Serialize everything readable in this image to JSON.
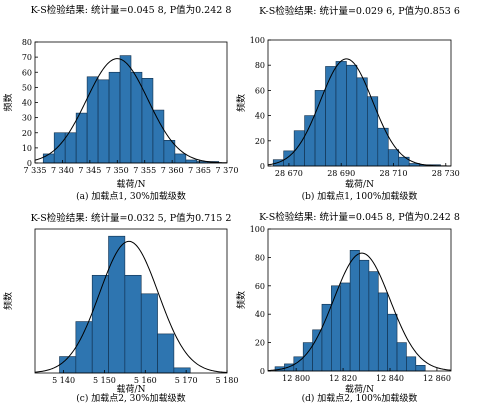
{
  "chart_data": [
    {
      "type": "bar",
      "title": "K-S检验结果: 统计量=0.045 8, P值为0.242 8",
      "caption": "(a) 加载点1, 30%加载级数",
      "xlabel": "载荷/N",
      "ylabel": "频数",
      "xlim": [
        7335,
        7370
      ],
      "ylim": [
        0,
        80
      ],
      "xticks": [
        7335,
        7340,
        7345,
        7350,
        7355,
        7360,
        7365,
        7370
      ],
      "xtick_labels": [
        "7 335",
        "7 340",
        "7 345",
        "7 350",
        "7 355",
        "7 360",
        "7 365",
        "7 370"
      ],
      "yticks": [
        0,
        10,
        20,
        30,
        40,
        50,
        60,
        70,
        80
      ],
      "bins": [
        {
          "x0": 7336.5,
          "x1": 7338.5,
          "value": 6
        },
        {
          "x0": 7338.5,
          "x1": 7340.5,
          "value": 20
        },
        {
          "x0": 7340.5,
          "x1": 7342.5,
          "value": 20
        },
        {
          "x0": 7342.5,
          "x1": 7344.5,
          "value": 33
        },
        {
          "x0": 7344.5,
          "x1": 7346.5,
          "value": 57
        },
        {
          "x0": 7346.5,
          "x1": 7348.5,
          "value": 55
        },
        {
          "x0": 7348.5,
          "x1": 7350.5,
          "value": 60
        },
        {
          "x0": 7350.5,
          "x1": 7352.5,
          "value": 71
        },
        {
          "x0": 7352.5,
          "x1": 7354.5,
          "value": 60
        },
        {
          "x0": 7354.5,
          "x1": 7356.5,
          "value": 56
        },
        {
          "x0": 7356.5,
          "x1": 7358.5,
          "value": 35
        },
        {
          "x0": 7358.5,
          "x1": 7360.5,
          "value": 15
        },
        {
          "x0": 7360.5,
          "x1": 7362.5,
          "value": 6
        },
        {
          "x0": 7362.5,
          "x1": 7364.5,
          "value": 2
        },
        {
          "x0": 7364.5,
          "x1": 7366.5,
          "value": 1
        },
        {
          "x0": 7366.5,
          "x1": 7368.5,
          "value": 1
        }
      ],
      "fit_curve": {
        "type": "normal",
        "mean": 7350,
        "sd": 5.6,
        "peak": 69
      }
    },
    {
      "type": "bar",
      "title": "K-S检验结果: 统计量=0.029 6, P值为0.853 6",
      "caption": "(b) 加载点1, 100%加载级数",
      "xlabel": "载荷/N",
      "ylabel": "频数",
      "xlim": [
        28662,
        28732
      ],
      "ylim": [
        0,
        100
      ],
      "xticks": [
        28670,
        28690,
        28710,
        28730
      ],
      "xtick_labels": [
        "28 670",
        "28 690",
        "28 710",
        "28 730"
      ],
      "yticks": [
        0,
        20,
        40,
        60,
        80,
        100
      ],
      "bins": [
        {
          "x0": 28664,
          "x1": 28668,
          "value": 5
        },
        {
          "x0": 28668,
          "x1": 28672,
          "value": 12
        },
        {
          "x0": 28672,
          "x1": 28676,
          "value": 28
        },
        {
          "x0": 28676,
          "x1": 28680,
          "value": 40
        },
        {
          "x0": 28680,
          "x1": 28684,
          "value": 60
        },
        {
          "x0": 28684,
          "x1": 28688,
          "value": 79
        },
        {
          "x0": 28688,
          "x1": 28692,
          "value": 83
        },
        {
          "x0": 28692,
          "x1": 28696,
          "value": 80
        },
        {
          "x0": 28696,
          "x1": 28700,
          "value": 70
        },
        {
          "x0": 28700,
          "x1": 28704,
          "value": 55
        },
        {
          "x0": 28704,
          "x1": 28708,
          "value": 30
        },
        {
          "x0": 28708,
          "x1": 28712,
          "value": 13
        },
        {
          "x0": 28712,
          "x1": 28716,
          "value": 7
        },
        {
          "x0": 28716,
          "x1": 28720,
          "value": 2
        },
        {
          "x0": 28720,
          "x1": 28724,
          "value": 1
        },
        {
          "x0": 28724,
          "x1": 28728,
          "value": 1
        }
      ],
      "fit_curve": {
        "type": "normal",
        "mean": 28692,
        "sd": 10,
        "peak": 85
      }
    },
    {
      "type": "bar",
      "title": "K-S检验结果: 统计量=0.032 5, P值为0.715 2",
      "caption": "(c) 加载点2, 30%加载级数",
      "xlabel": "载荷/N",
      "ylabel": "频数",
      "xlim": [
        5133,
        5180
      ],
      "ylim": [
        0,
        140
      ],
      "xticks": [
        5140,
        5150,
        5160,
        5170,
        5180
      ],
      "xtick_labels": [
        "5 140",
        "5 150",
        "5 160",
        "5 170",
        "5 180"
      ],
      "yticks": [],
      "bins": [
        {
          "x0": 5139,
          "x1": 5143,
          "value": 16
        },
        {
          "x0": 5143,
          "x1": 5147,
          "value": 50
        },
        {
          "x0": 5147,
          "x1": 5151,
          "value": 95
        },
        {
          "x0": 5151,
          "x1": 5155,
          "value": 133
        },
        {
          "x0": 5155,
          "x1": 5159,
          "value": 95
        },
        {
          "x0": 5159,
          "x1": 5163,
          "value": 77
        },
        {
          "x0": 5163,
          "x1": 5167,
          "value": 38
        },
        {
          "x0": 5167,
          "x1": 5171,
          "value": 5
        }
      ],
      "fit_curve": {
        "type": "normal",
        "mean": 5156,
        "sd": 7.2,
        "peak": 128
      }
    },
    {
      "type": "bar",
      "title": "K-S检验结果: 统计量=0.045 8, P值为0.242 8",
      "caption": "(d) 加载点2, 100%加载级数",
      "xlabel": "载荷/N",
      "ylabel": "频数",
      "xlim": [
        12788,
        12866
      ],
      "ylim": [
        0,
        100
      ],
      "xticks": [
        12800,
        12820,
        12840,
        12860
      ],
      "xtick_labels": [
        "12 800",
        "12 820",
        "12 840",
        "12 860"
      ],
      "yticks": [
        0,
        20,
        40,
        60,
        80,
        100
      ],
      "bins": [
        {
          "x0": 12791,
          "x1": 12795,
          "value": 3
        },
        {
          "x0": 12795,
          "x1": 12799,
          "value": 5
        },
        {
          "x0": 12799,
          "x1": 12803,
          "value": 10
        },
        {
          "x0": 12803,
          "x1": 12807,
          "value": 20
        },
        {
          "x0": 12807,
          "x1": 12811,
          "value": 29
        },
        {
          "x0": 12811,
          "x1": 12815,
          "value": 47
        },
        {
          "x0": 12815,
          "x1": 12819,
          "value": 60
        },
        {
          "x0": 12819,
          "x1": 12823,
          "value": 62
        },
        {
          "x0": 12823,
          "x1": 12827,
          "value": 85
        },
        {
          "x0": 12827,
          "x1": 12831,
          "value": 78
        },
        {
          "x0": 12831,
          "x1": 12835,
          "value": 70
        },
        {
          "x0": 12835,
          "x1": 12839,
          "value": 55
        },
        {
          "x0": 12839,
          "x1": 12843,
          "value": 40
        },
        {
          "x0": 12843,
          "x1": 12847,
          "value": 20
        },
        {
          "x0": 12847,
          "x1": 12851,
          "value": 10
        },
        {
          "x0": 12851,
          "x1": 12855,
          "value": 4
        }
      ],
      "fit_curve": {
        "type": "normal",
        "mean": 12828,
        "sd": 12,
        "peak": 83
      }
    }
  ],
  "colors": {
    "bar_fill": "#2e75b0",
    "bar_edge": "#0f2d4a",
    "curve": "#000000"
  }
}
